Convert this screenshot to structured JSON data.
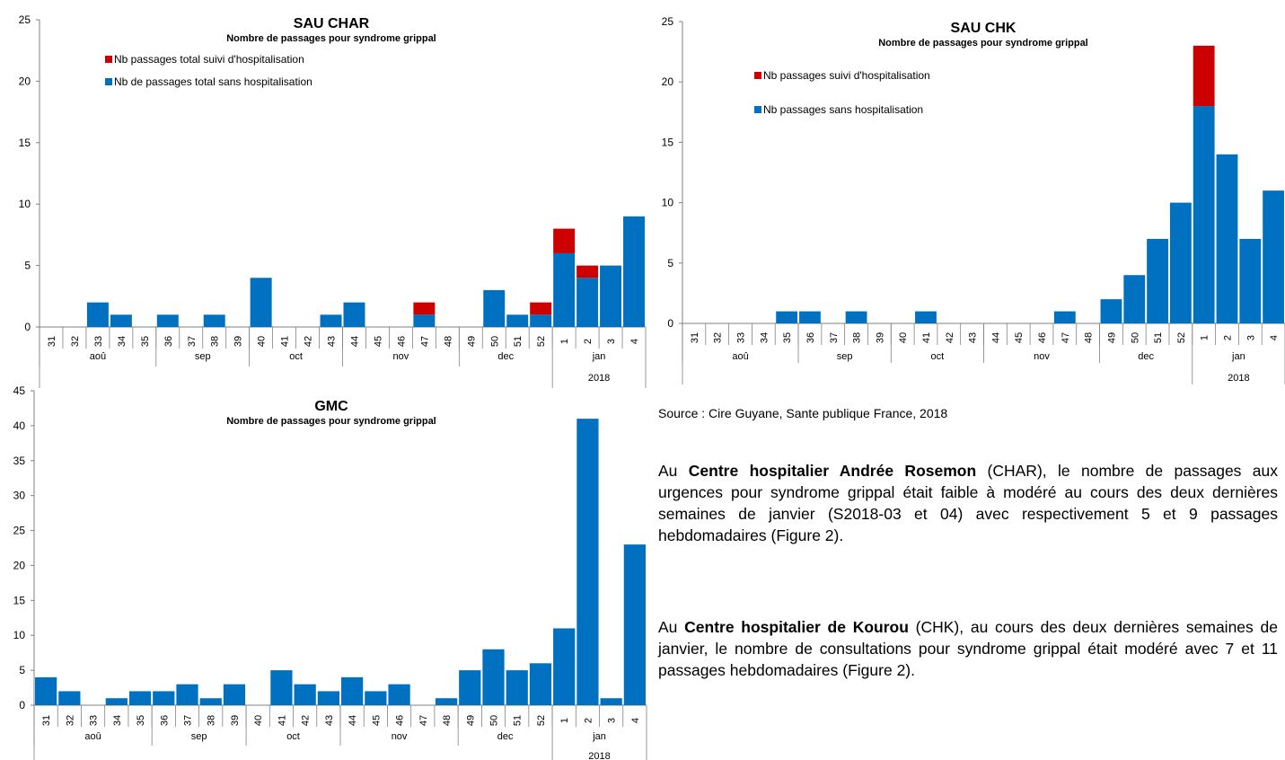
{
  "colors": {
    "blue": "#0070c0",
    "red": "#cc0000",
    "axis": "#808080"
  },
  "charts": [
    {
      "title": "SAU CHAR",
      "subtitle": "Nombre de passages pour syndrome grippal",
      "weeks": [
        "31",
        "32",
        "33",
        "34",
        "35",
        "36",
        "37",
        "38",
        "39",
        "40",
        "41",
        "42",
        "43",
        "44",
        "45",
        "46",
        "47",
        "48",
        "49",
        "50",
        "51",
        "52",
        "1",
        "2",
        "3",
        "4"
      ],
      "months": [
        "aoû",
        "sep",
        "oct",
        "nov",
        "dec",
        "jan"
      ],
      "year": "2018",
      "yticks": [
        "0",
        "5",
        "10",
        "15",
        "20",
        "25"
      ],
      "legend": [
        "Nb passages total suivi d'hospitalisation",
        "Nb de passages total sans hospitalisation"
      ]
    },
    {
      "title": "SAU CHK",
      "subtitle": "Nombre de passages pour syndrome grippal",
      "weeks": [
        "31",
        "32",
        "33",
        "34",
        "35",
        "36",
        "37",
        "38",
        "39",
        "40",
        "41",
        "42",
        "43",
        "44",
        "45",
        "46",
        "47",
        "48",
        "49",
        "50",
        "51",
        "52",
        "1",
        "2",
        "3",
        "4"
      ],
      "months": [
        "aoû",
        "sep",
        "oct",
        "nov",
        "dec",
        "jan"
      ],
      "year": "2018",
      "yticks": [
        "0",
        "5",
        "10",
        "15",
        "20",
        "25"
      ],
      "legend": [
        "Nb passages suivi d'hospitalisation",
        "Nb passages sans hospitalisation"
      ]
    },
    {
      "title": "GMC",
      "subtitle": "Nombre de passages pour syndrome grippal",
      "weeks": [
        "31",
        "32",
        "33",
        "34",
        "35",
        "36",
        "37",
        "38",
        "39",
        "40",
        "41",
        "42",
        "43",
        "44",
        "45",
        "46",
        "47",
        "48",
        "49",
        "50",
        "51",
        "52",
        "1",
        "2",
        "3",
        "4"
      ],
      "months": [
        "aoû",
        "sep",
        "oct",
        "nov",
        "dec",
        "jan"
      ],
      "year": "2018",
      "yticks": [
        "0",
        "5",
        "10",
        "15",
        "20",
        "25",
        "30",
        "35",
        "40",
        "45"
      ],
      "legend": []
    }
  ],
  "chart_data": [
    {
      "type": "bar",
      "title": "SAU CHAR",
      "subtitle": "Nombre de passages pour syndrome grippal",
      "categories": [
        "31",
        "32",
        "33",
        "34",
        "35",
        "36",
        "37",
        "38",
        "39",
        "40",
        "41",
        "42",
        "43",
        "44",
        "45",
        "46",
        "47",
        "48",
        "49",
        "50",
        "51",
        "52",
        "1",
        "2",
        "3",
        "4"
      ],
      "series": [
        {
          "name": "Nb de passages total sans hospitalisation",
          "values": [
            0,
            0,
            2,
            1,
            0,
            1,
            0,
            1,
            0,
            4,
            0,
            0,
            1,
            2,
            0,
            0,
            1,
            0,
            0,
            3,
            1,
            1,
            6,
            4,
            5,
            9
          ]
        },
        {
          "name": "Nb passages total suivi d'hospitalisation",
          "values": [
            0,
            0,
            0,
            0,
            0,
            0,
            0,
            0,
            0,
            0,
            0,
            0,
            0,
            0,
            0,
            0,
            1,
            0,
            0,
            0,
            0,
            1,
            2,
            1,
            0,
            0
          ]
        }
      ],
      "stacked": true,
      "ylim": [
        0,
        25
      ],
      "legend_position": "top-left"
    },
    {
      "type": "bar",
      "title": "SAU CHK",
      "subtitle": "Nombre de passages pour syndrome grippal",
      "categories": [
        "31",
        "32",
        "33",
        "34",
        "35",
        "36",
        "37",
        "38",
        "39",
        "40",
        "41",
        "42",
        "43",
        "44",
        "45",
        "46",
        "47",
        "48",
        "49",
        "50",
        "51",
        "52",
        "1",
        "2",
        "3",
        "4"
      ],
      "series": [
        {
          "name": "Nb passages sans hospitalisation",
          "values": [
            0,
            0,
            0,
            0,
            1,
            1,
            0,
            1,
            0,
            0,
            1,
            0,
            0,
            0,
            0,
            0,
            1,
            0,
            2,
            4,
            7,
            10,
            18,
            14,
            7,
            11
          ]
        },
        {
          "name": "Nb passages suivi d'hospitalisation",
          "values": [
            0,
            0,
            0,
            0,
            0,
            0,
            0,
            0,
            0,
            0,
            0,
            0,
            0,
            0,
            0,
            0,
            0,
            0,
            0,
            0,
            0,
            0,
            5,
            0,
            0,
            0
          ]
        }
      ],
      "stacked": true,
      "ylim": [
        0,
        25
      ],
      "legend_position": "top-left"
    },
    {
      "type": "bar",
      "title": "GMC",
      "subtitle": "Nombre de passages pour syndrome grippal",
      "categories": [
        "31",
        "32",
        "33",
        "34",
        "35",
        "36",
        "37",
        "38",
        "39",
        "40",
        "41",
        "42",
        "43",
        "44",
        "45",
        "46",
        "47",
        "48",
        "49",
        "50",
        "51",
        "52",
        "1",
        "2",
        "3",
        "4"
      ],
      "series": [
        {
          "values": [
            4,
            2,
            0,
            1,
            2,
            2,
            3,
            1,
            3,
            0,
            5,
            3,
            2,
            4,
            2,
            3,
            0,
            1,
            5,
            8,
            5,
            6,
            11,
            41,
            1,
            23
          ]
        }
      ],
      "ylim": [
        0,
        45
      ]
    }
  ],
  "source": "Source : Cire Guyane, Sante publique France, 2018",
  "paragraphs": [
    {
      "pre": "Au ",
      "bold": "Centre hospitalier Andrée Rosemon",
      "post": " (CHAR), le nombre de passages aux urgences pour syndrome grippal était faible à modéré au cours des deux dernières semaines de janvier (S2018-03 et 04) avec respectivement 5 et 9 passages hebdomadaires (Figure 2)."
    },
    {
      "pre": "Au ",
      "bold": "Centre hospitalier de Kourou",
      "post": " (CHK), au cours des deux dernières semaines de janvier, le nombre de consultations pour syndrome grippal était modéré avec 7 et 11 passages hebdomadaires (Figure 2)."
    }
  ]
}
